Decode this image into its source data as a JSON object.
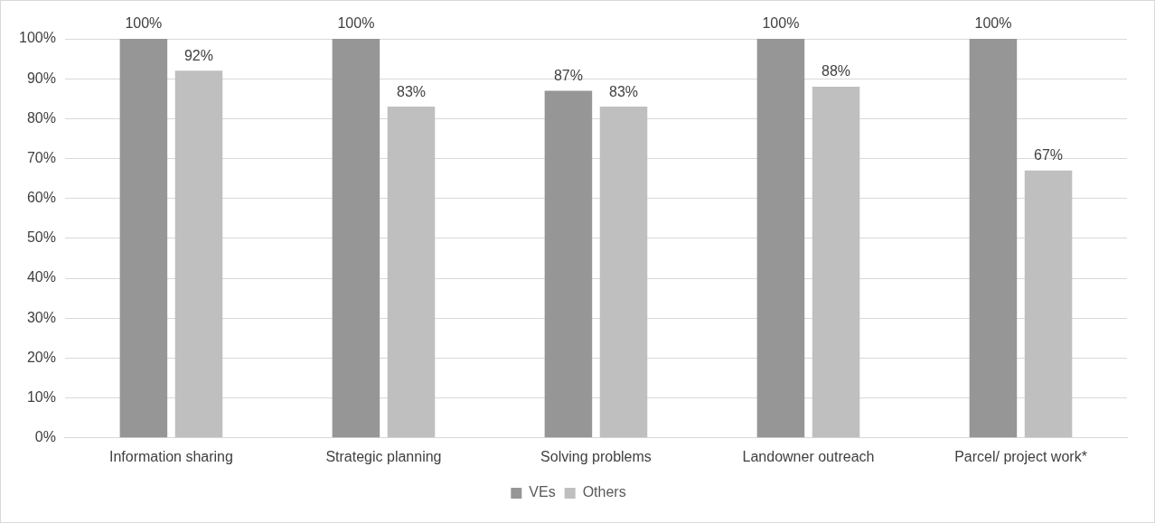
{
  "chart_data": {
    "type": "bar",
    "categories": [
      "Information sharing",
      "Strategic planning",
      "Solving problems",
      "Landowner outreach",
      "Parcel/ project work*"
    ],
    "series": [
      {
        "name": "VEs",
        "color": "#969696",
        "values": [
          100,
          100,
          87,
          100,
          100
        ],
        "value_labels": [
          "100%",
          "100%",
          "87%",
          "100%",
          "100%"
        ]
      },
      {
        "name": "Others",
        "color": "#bfbfbf",
        "values": [
          92,
          83,
          83,
          88,
          67
        ],
        "value_labels": [
          "92%",
          "83%",
          "83%",
          "88%",
          "67%"
        ]
      }
    ],
    "ylim": [
      0,
      100
    ],
    "yticks": [
      {
        "value": 0,
        "label": "0%"
      },
      {
        "value": 10,
        "label": "10%"
      },
      {
        "value": 20,
        "label": "20%"
      },
      {
        "value": 30,
        "label": "30%"
      },
      {
        "value": 40,
        "label": "40%"
      },
      {
        "value": 50,
        "label": "50%"
      },
      {
        "value": 60,
        "label": "60%"
      },
      {
        "value": 70,
        "label": "70%"
      },
      {
        "value": 80,
        "label": "80%"
      },
      {
        "value": 90,
        "label": "90%"
      },
      {
        "value": 100,
        "label": "100%"
      }
    ],
    "grid": "y",
    "legend": "bottom"
  }
}
